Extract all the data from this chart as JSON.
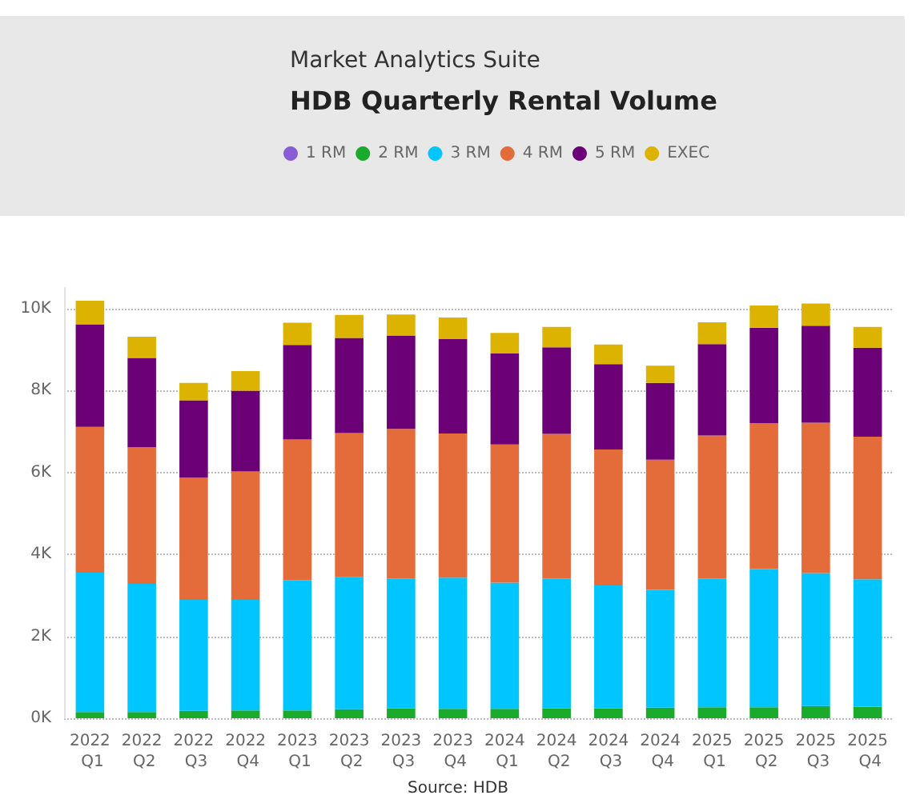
{
  "chart_data": {
    "type": "bar",
    "stacked": true,
    "subtitle": "Market Analytics Suite",
    "title": "HDB Quarterly Rental Volume",
    "categories": [
      "2022 Q1",
      "2022 Q2",
      "2022 Q3",
      "2022 Q4",
      "2023 Q1",
      "2023 Q2",
      "2023 Q3",
      "2023 Q4",
      "2024 Q1",
      "2024 Q2",
      "2024 Q3",
      "2024 Q4",
      "2025 Q1",
      "2025 Q2",
      "2025 Q3",
      "2025 Q4"
    ],
    "series": [
      {
        "name": "1 RM",
        "color": "#8a5cd6",
        "values": [
          0,
          0,
          0,
          0,
          0,
          0,
          0,
          0,
          0,
          0,
          0,
          0,
          0,
          0,
          0,
          0
        ]
      },
      {
        "name": "2 RM",
        "color": "#1aab2c",
        "values": [
          150,
          150,
          180,
          190,
          190,
          220,
          240,
          230,
          230,
          240,
          240,
          260,
          270,
          270,
          300,
          280
        ]
      },
      {
        "name": "3 RM",
        "color": "#00c5ff",
        "values": [
          3400,
          3130,
          2710,
          2700,
          3180,
          3220,
          3170,
          3200,
          3080,
          3170,
          3000,
          2870,
          3140,
          3370,
          3240,
          3110
        ]
      },
      {
        "name": "4 RM",
        "color": "#e46c3a",
        "values": [
          3560,
          3330,
          2980,
          3130,
          3430,
          3520,
          3650,
          3520,
          3370,
          3530,
          3320,
          3180,
          3490,
          3560,
          3670,
          3480
        ]
      },
      {
        "name": "5 RM",
        "color": "#6b0077",
        "values": [
          2500,
          2180,
          1890,
          1970,
          2310,
          2320,
          2280,
          2300,
          2220,
          2110,
          2080,
          1870,
          2230,
          2330,
          2370,
          2170
        ]
      },
      {
        "name": "EXEC",
        "color": "#dbb300",
        "values": [
          580,
          520,
          420,
          480,
          540,
          560,
          510,
          530,
          500,
          500,
          480,
          420,
          530,
          540,
          540,
          510
        ]
      }
    ],
    "ylim": [
      0,
      10500
    ],
    "yticks": [
      {
        "value": 0,
        "label": "0K"
      },
      {
        "value": 2000,
        "label": "2K"
      },
      {
        "value": 4000,
        "label": "4K"
      },
      {
        "value": 6000,
        "label": "6K"
      },
      {
        "value": 8000,
        "label": "8K"
      },
      {
        "value": 10000,
        "label": "10K"
      }
    ],
    "grid": "y",
    "legend": "top left",
    "annotations": [
      "Source: HDB"
    ]
  }
}
